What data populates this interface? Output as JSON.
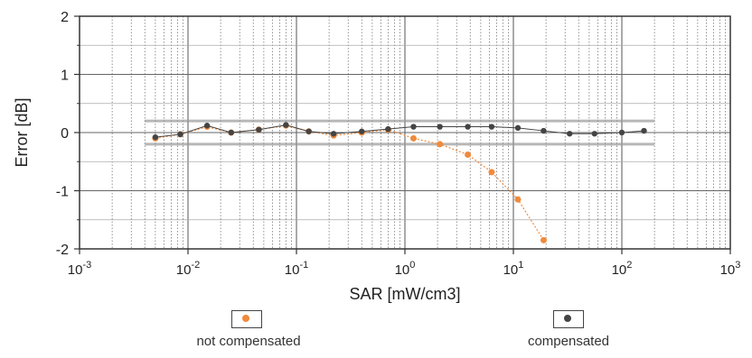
{
  "chart_data": {
    "type": "scatter",
    "title": "",
    "xlabel": "SAR [mW/cm3]",
    "ylabel": "Error [dB]",
    "x_scale": "log",
    "xlim": [
      0.001,
      1000
    ],
    "ylim": [
      -2,
      2
    ],
    "x_ticks": [
      0.001,
      0.01,
      0.1,
      1,
      10,
      100,
      1000
    ],
    "x_tick_labels": [
      "10-3",
      "10-2",
      "10-1",
      "100",
      "101",
      "102",
      "103"
    ],
    "y_ticks": [
      -2,
      -1,
      0,
      1,
      2
    ],
    "y_tick_labels": [
      "-2",
      "-1",
      "0",
      "1",
      "2"
    ],
    "grid": true,
    "legend_position": "bottom",
    "tolerance_band": [
      -0.2,
      0.2
    ],
    "series": [
      {
        "name": "not compensated",
        "color": "#f08a3c",
        "x": [
          0.005,
          0.0085,
          0.015,
          0.025,
          0.045,
          0.08,
          0.13,
          0.22,
          0.4,
          0.7,
          1.2,
          2.1,
          3.8,
          6.3,
          11,
          19
        ],
        "y": [
          -0.1,
          -0.03,
          0.1,
          0.0,
          0.05,
          0.12,
          0.02,
          -0.05,
          0.0,
          0.05,
          -0.1,
          -0.2,
          -0.38,
          -0.68,
          -1.15,
          -1.85
        ]
      },
      {
        "name": "compensated",
        "color": "#444444",
        "x": [
          0.005,
          0.0085,
          0.015,
          0.025,
          0.045,
          0.08,
          0.13,
          0.22,
          0.4,
          0.7,
          1.2,
          2.1,
          3.8,
          6.3,
          11,
          19,
          33,
          56,
          100,
          160
        ],
        "y": [
          -0.08,
          -0.03,
          0.12,
          0.0,
          0.05,
          0.13,
          0.02,
          -0.02,
          0.02,
          0.06,
          0.1,
          0.1,
          0.1,
          0.1,
          0.08,
          0.03,
          -0.02,
          -0.02,
          0.0,
          0.03
        ]
      }
    ]
  }
}
